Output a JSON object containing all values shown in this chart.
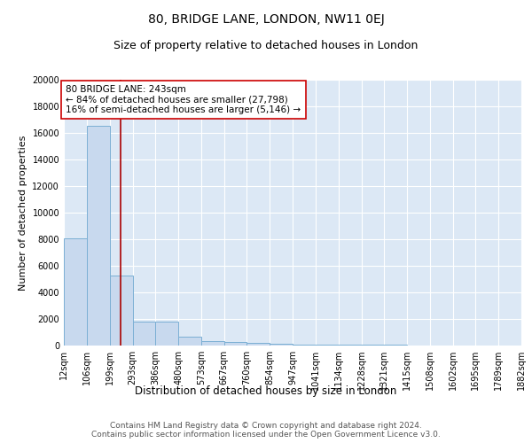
{
  "title": "80, BRIDGE LANE, LONDON, NW11 0EJ",
  "subtitle": "Size of property relative to detached houses in London",
  "xlabel": "Distribution of detached houses by size in London",
  "ylabel": "Number of detached properties",
  "bin_edges": [
    12,
    106,
    199,
    293,
    386,
    480,
    573,
    667,
    760,
    854,
    947,
    1041,
    1134,
    1228,
    1321,
    1415,
    1508,
    1602,
    1695,
    1789,
    1882
  ],
  "bar_heights": [
    8100,
    16500,
    5300,
    1800,
    1800,
    700,
    350,
    250,
    200,
    150,
    100,
    80,
    60,
    50,
    40,
    30,
    25,
    20,
    15,
    10
  ],
  "bar_color": "#c8d9ee",
  "bar_edgecolor": "#7bafd4",
  "bar_linewidth": 0.7,
  "vline_x": 243,
  "vline_color": "#aa0000",
  "vline_linewidth": 1.2,
  "annotation_text": "80 BRIDGE LANE: 243sqm\n← 84% of detached houses are smaller (27,798)\n16% of semi-detached houses are larger (5,146) →",
  "annotation_box_edgecolor": "#cc0000",
  "annotation_box_facecolor": "white",
  "annotation_fontsize": 7.5,
  "ylim": [
    0,
    20000
  ],
  "yticks": [
    0,
    2000,
    4000,
    6000,
    8000,
    10000,
    12000,
    14000,
    16000,
    18000,
    20000
  ],
  "background_color": "#dce8f5",
  "title_fontsize": 10,
  "subtitle_fontsize": 9,
  "xlabel_fontsize": 8.5,
  "ylabel_fontsize": 8,
  "tick_fontsize": 7,
  "footer_text": "Contains HM Land Registry data © Crown copyright and database right 2024.\nContains public sector information licensed under the Open Government Licence v3.0.",
  "footer_fontsize": 6.5
}
